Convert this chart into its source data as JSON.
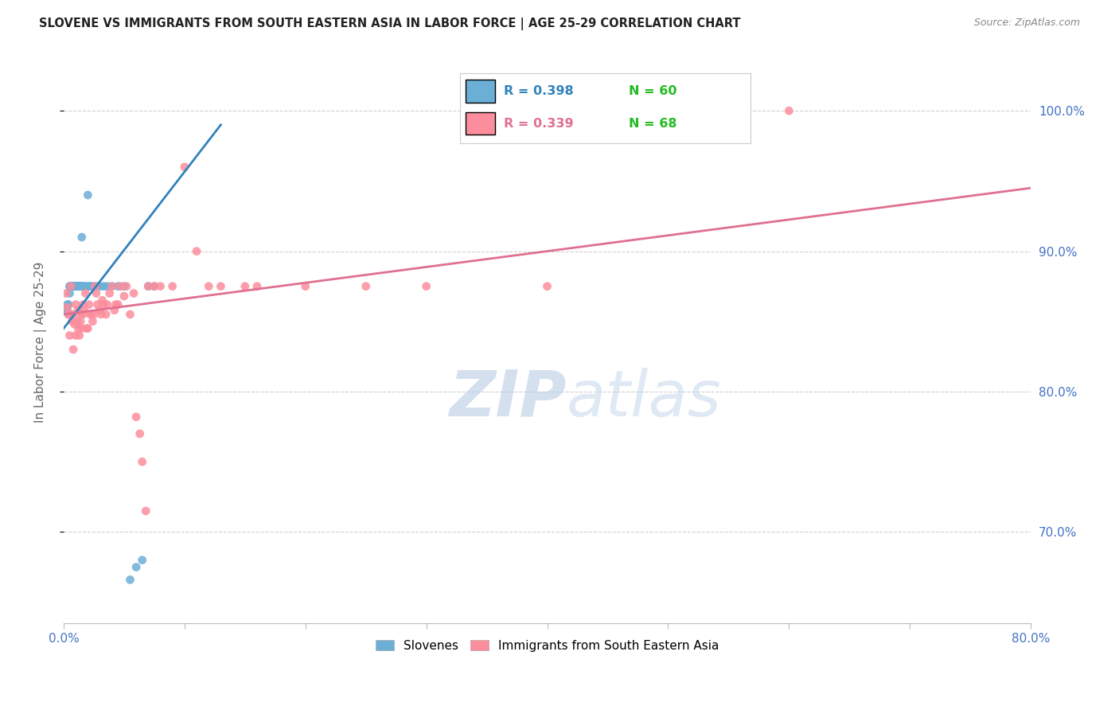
{
  "title": "SLOVENE VS IMMIGRANTS FROM SOUTH EASTERN ASIA IN LABOR FORCE | AGE 25-29 CORRELATION CHART",
  "source": "Source: ZipAtlas.com",
  "ylabel": "In Labor Force | Age 25-29",
  "right_yticks": [
    0.7,
    0.8,
    0.9,
    1.0
  ],
  "right_yticklabels": [
    "70.0%",
    "80.0%",
    "90.0%",
    "100.0%"
  ],
  "xmin": 0.0,
  "xmax": 0.8,
  "ymin": 0.635,
  "ymax": 1.035,
  "blue_R": 0.398,
  "blue_N": 60,
  "pink_R": 0.339,
  "pink_N": 68,
  "legend_label_blue": "Slovenes",
  "legend_label_pink": "Immigrants from South Eastern Asia",
  "blue_color": "#6baed6",
  "pink_color": "#fc8d9c",
  "blue_line_color": "#3182bd",
  "pink_line_color": "#e07090",
  "title_color": "#222222",
  "source_color": "#888888",
  "axis_label_color": "#4472c4",
  "grid_color": "#d0d0d0",
  "blue_scatter_x": [
    0.002,
    0.003,
    0.003,
    0.004,
    0.004,
    0.005,
    0.005,
    0.005,
    0.006,
    0.006,
    0.006,
    0.007,
    0.007,
    0.007,
    0.008,
    0.008,
    0.008,
    0.008,
    0.009,
    0.009,
    0.009,
    0.01,
    0.01,
    0.01,
    0.01,
    0.011,
    0.011,
    0.011,
    0.012,
    0.012,
    0.012,
    0.013,
    0.013,
    0.013,
    0.014,
    0.014,
    0.015,
    0.015,
    0.016,
    0.016,
    0.017,
    0.018,
    0.019,
    0.02,
    0.021,
    0.022,
    0.023,
    0.025,
    0.027,
    0.03,
    0.033,
    0.036,
    0.04,
    0.045,
    0.05,
    0.055,
    0.06,
    0.065,
    0.07,
    0.075
  ],
  "blue_scatter_y": [
    0.857,
    0.858,
    0.862,
    0.855,
    0.862,
    0.87,
    0.875,
    0.875,
    0.875,
    0.875,
    0.875,
    0.875,
    0.875,
    0.875,
    0.875,
    0.875,
    0.875,
    0.875,
    0.875,
    0.875,
    0.875,
    0.875,
    0.875,
    0.875,
    0.875,
    0.875,
    0.875,
    0.875,
    0.875,
    0.875,
    0.875,
    0.875,
    0.875,
    0.875,
    0.875,
    0.875,
    0.91,
    0.875,
    0.875,
    0.875,
    0.875,
    0.875,
    0.875,
    0.94,
    0.875,
    0.875,
    0.875,
    0.875,
    0.875,
    0.875,
    0.875,
    0.875,
    0.875,
    0.875,
    0.875,
    0.666,
    0.675,
    0.68,
    0.875,
    0.875
  ],
  "pink_scatter_x": [
    0.002,
    0.003,
    0.004,
    0.005,
    0.006,
    0.006,
    0.007,
    0.008,
    0.008,
    0.009,
    0.01,
    0.01,
    0.011,
    0.012,
    0.012,
    0.013,
    0.014,
    0.014,
    0.015,
    0.016,
    0.016,
    0.017,
    0.018,
    0.019,
    0.02,
    0.021,
    0.022,
    0.023,
    0.024,
    0.025,
    0.026,
    0.027,
    0.028,
    0.03,
    0.031,
    0.032,
    0.033,
    0.035,
    0.036,
    0.038,
    0.04,
    0.042,
    0.043,
    0.045,
    0.047,
    0.05,
    0.052,
    0.055,
    0.058,
    0.06,
    0.063,
    0.065,
    0.068,
    0.07,
    0.075,
    0.08,
    0.09,
    0.1,
    0.11,
    0.12,
    0.13,
    0.15,
    0.16,
    0.2,
    0.25,
    0.3,
    0.4,
    0.6
  ],
  "pink_scatter_y": [
    0.87,
    0.86,
    0.855,
    0.84,
    0.855,
    0.875,
    0.85,
    0.83,
    0.855,
    0.848,
    0.84,
    0.862,
    0.85,
    0.858,
    0.845,
    0.84,
    0.85,
    0.855,
    0.845,
    0.862,
    0.855,
    0.858,
    0.87,
    0.845,
    0.845,
    0.862,
    0.855,
    0.855,
    0.85,
    0.855,
    0.875,
    0.87,
    0.862,
    0.858,
    0.855,
    0.865,
    0.862,
    0.855,
    0.862,
    0.87,
    0.875,
    0.858,
    0.862,
    0.862,
    0.875,
    0.868,
    0.875,
    0.855,
    0.87,
    0.782,
    0.77,
    0.75,
    0.715,
    0.875,
    0.875,
    0.875,
    0.875,
    0.96,
    0.9,
    0.875,
    0.875,
    0.875,
    0.875,
    0.875,
    0.875,
    0.875,
    0.875,
    1.0
  ],
  "blue_trend_x": [
    0.0,
    0.13
  ],
  "blue_trend_y": [
    0.845,
    0.99
  ],
  "pink_trend_x": [
    0.0,
    0.8
  ],
  "pink_trend_y": [
    0.855,
    0.945
  ]
}
